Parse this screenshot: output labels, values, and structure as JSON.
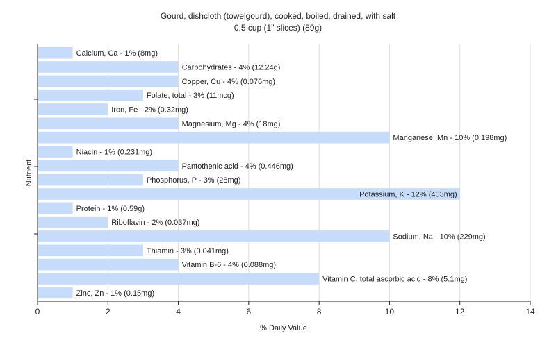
{
  "chart_data": {
    "type": "bar",
    "orientation": "horizontal",
    "title": "Gourd, dishcloth (towelgourd), cooked, boiled, drained, with salt",
    "subtitle": "0.5 cup (1\" slices) (89g)",
    "xlabel": "% Daily Value",
    "ylabel": "Nutrient",
    "xlim": [
      0,
      14
    ],
    "xticks": [
      "0",
      "2",
      "4",
      "6",
      "8",
      "10",
      "12",
      "14"
    ],
    "grid": true,
    "bar_color": "#c6dcfa",
    "categories": [
      "Calcium, Ca",
      "Carbohydrates",
      "Copper, Cu",
      "Folate, total",
      "Iron, Fe",
      "Magnesium, Mg",
      "Manganese, Mn",
      "Niacin",
      "Pantothenic acid",
      "Phosphorus, P",
      "Potassium, K",
      "Protein",
      "Riboflavin",
      "Sodium, Na",
      "Thiamin",
      "Vitamin B-6",
      "Vitamin C, total ascorbic acid",
      "Zinc, Zn"
    ],
    "values": [
      1,
      4,
      4,
      3,
      2,
      4,
      10,
      1,
      4,
      3,
      12,
      1,
      2,
      10,
      3,
      4,
      8,
      1
    ],
    "labels": [
      "Calcium, Ca - 1% (8mg)",
      "Carbohydrates - 4% (12.24g)",
      "Copper, Cu - 4% (0.076mg)",
      "Folate, total - 3% (11mcg)",
      "Iron, Fe - 2% (0.32mg)",
      "Magnesium, Mg - 4% (18mg)",
      "Manganese, Mn - 10% (0.198mg)",
      "Niacin - 1% (0.231mg)",
      "Pantothenic acid - 4% (0.446mg)",
      "Phosphorus, P - 3% (28mg)",
      "Potassium, K - 12% (403mg)",
      "Protein - 1% (0.59g)",
      "Riboflavin - 2% (0.037mg)",
      "Sodium, Na - 10% (229mg)",
      "Thiamin - 3% (0.041mg)",
      "Vitamin B-6 - 4% (0.088mg)",
      "Vitamin C, total ascorbic acid - 8% (5.1mg)",
      "Zinc, Zn - 1% (0.15mg)"
    ]
  }
}
